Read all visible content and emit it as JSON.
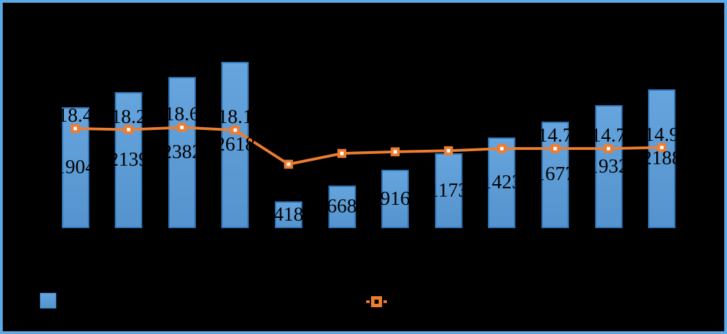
{
  "page": {
    "background": "#000000",
    "frame_border_color": "#5CA9E8",
    "data_label_color": "#000000"
  },
  "chart_data": {
    "type": "combo",
    "title": null,
    "gridlines": false,
    "axes_visible": false,
    "category_axis_labels_visible": false,
    "bar_series": {
      "type": "bar",
      "color": "#5B9BD5",
      "border_color": "#2E75B6",
      "values": [
        1904,
        2139,
        2382,
        2618,
        418,
        668,
        916,
        1173,
        1423,
        1677,
        1932,
        2188
      ],
      "data_labels": [
        "1904",
        "2139",
        "2382",
        "2618",
        "418",
        "668",
        "916",
        "1173",
        "1423",
        "1677",
        "1932",
        "2188"
      ],
      "label_position": "inside-center"
    },
    "line_series": {
      "type": "line",
      "color": "#ED7D31",
      "marker": "square-with-white-center",
      "values": [
        18.4,
        18.2,
        18.6,
        18.1,
        11.8,
        13.8,
        14.1,
        14.3,
        14.7,
        14.7,
        14.7,
        14.9
      ],
      "values_estimated_where_unlabeled": true,
      "data_labels": [
        "18.4",
        "18.2",
        "18.6",
        "18.1",
        null,
        null,
        null,
        null,
        null,
        "14.7",
        "14.7",
        "14.9"
      ],
      "label_position": "above"
    },
    "legend": {
      "position": "bottom",
      "items": [
        {
          "name": "bar-series-swatch",
          "swatch_color": "#5B9BD5"
        },
        {
          "name": "line-series-swatch",
          "swatch_color": "#ED7D31"
        }
      ]
    }
  }
}
